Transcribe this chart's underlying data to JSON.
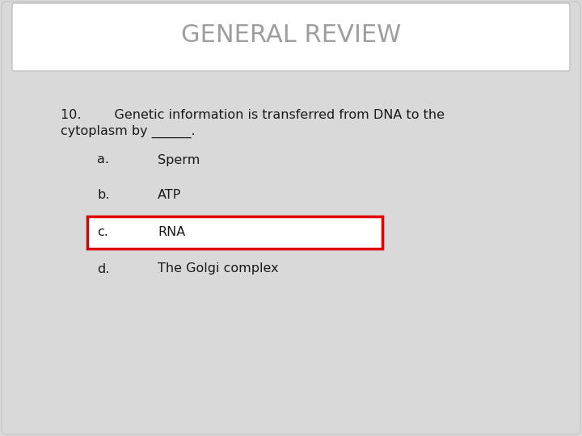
{
  "title": "GENERAL REVIEW",
  "title_color": "#9e9e9e",
  "title_fontsize": 22,
  "background_color": "#d9d9d9",
  "header_bg_color": "#ffffff",
  "header_border_color": "#c0c0c0",
  "question_line1": "10.        Genetic information is transferred from DNA to the",
  "question_line2": "cytoplasm by ______.",
  "question_fontsize": 11.5,
  "question_color": "#1a1a1a",
  "options": [
    {
      "label": "a.",
      "text": "Sperm",
      "highlighted": false
    },
    {
      "label": "b.",
      "text": "ATP",
      "highlighted": false
    },
    {
      "label": "c.",
      "text": "RNA",
      "highlighted": true
    },
    {
      "label": "d.",
      "text": "The Golgi complex",
      "highlighted": false
    }
  ],
  "option_fontsize": 11.5,
  "option_color": "#1a1a1a",
  "highlight_box_color": "#dd0000",
  "highlight_fill_color": "#ffffff",
  "fig_width": 7.2,
  "fig_height": 5.4,
  "dpi": 100
}
